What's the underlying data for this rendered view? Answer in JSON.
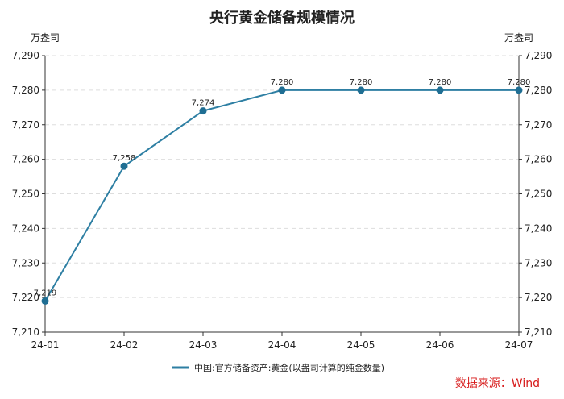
{
  "chart_data": {
    "type": "line",
    "title": "央行黄金储备规模情况",
    "ylabel_left": "万盎司",
    "ylabel_right": "万盎司",
    "x": [
      "24-01",
      "24-02",
      "24-03",
      "24-04",
      "24-05",
      "24-06",
      "24-07"
    ],
    "series": [
      {
        "name": "中国:官方储备资产:黄金(以盎司计算的纯金数量)",
        "values": [
          7219,
          7258,
          7274,
          7280,
          7280,
          7280,
          7280
        ],
        "labels": [
          "7,219",
          "7,258",
          "7,274",
          "7,280",
          "7,280",
          "7,280",
          "7,280"
        ]
      }
    ],
    "ylim": [
      7210,
      7290
    ],
    "yticks": [
      7210,
      7220,
      7230,
      7240,
      7250,
      7260,
      7270,
      7280,
      7290
    ],
    "ytick_labels": [
      "7,210",
      "7,220",
      "7,230",
      "7,240",
      "7,250",
      "7,260",
      "7,270",
      "7,280",
      "7,290"
    ],
    "grid": true,
    "legend_position": "bottom-center",
    "source": "数据来源：Wind",
    "colors": {
      "series": "#2e7fa3",
      "marker": "#1f6e93",
      "grid": "#dddddd",
      "axis": "#333333",
      "source": "#d71a1a"
    }
  }
}
